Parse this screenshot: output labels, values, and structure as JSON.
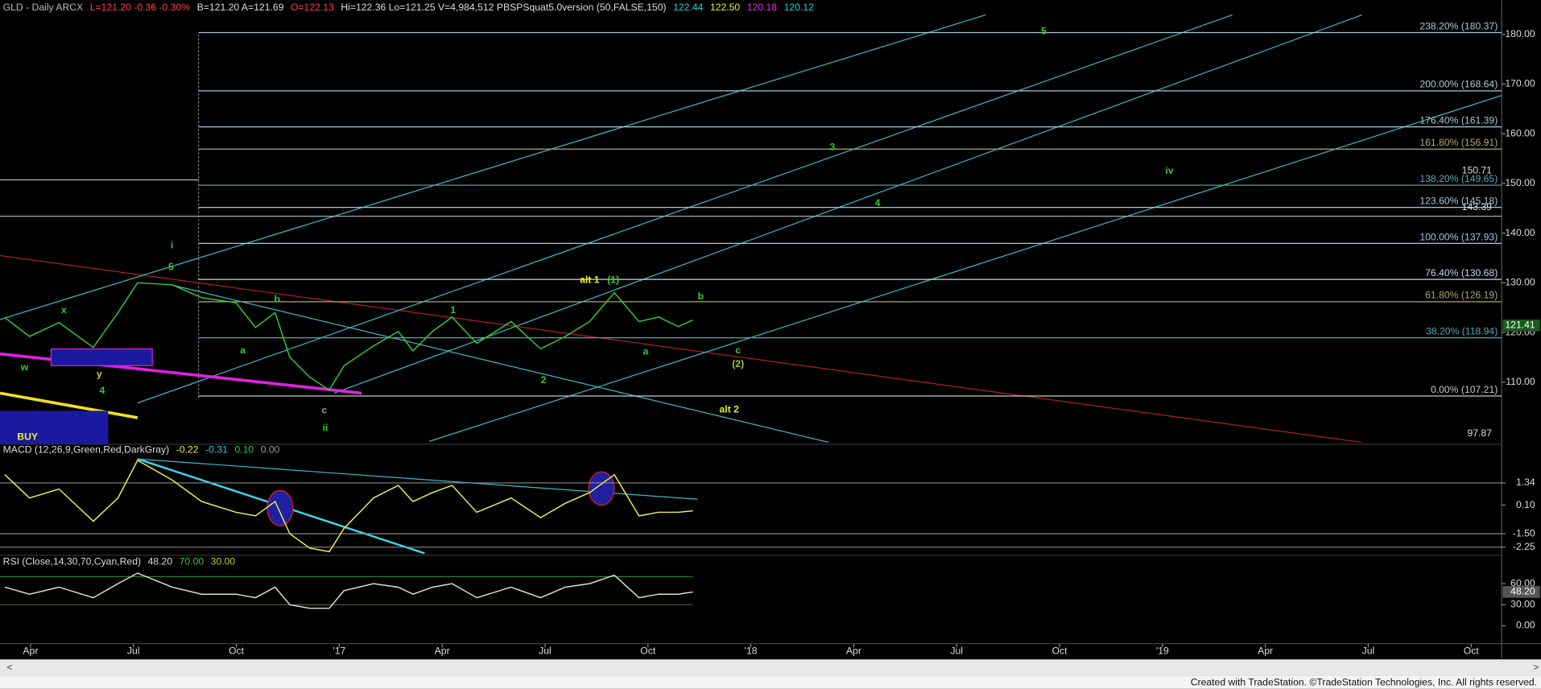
{
  "header": {
    "parts": [
      {
        "text": "GLD - Daily  ARCX",
        "color": "#bbbbbb"
      },
      {
        "text": "L=121.20  -0.36  -0.30%",
        "color": "#ff4040"
      },
      {
        "text": "B=121.20  A=121.69",
        "color": "#dddddd"
      },
      {
        "text": "O=122.13",
        "color": "#ff4040"
      },
      {
        "text": "Hi=122.36  Lo=121.25  V=4,984,512  PBSPSquat5.0version (50,FALSE,150)",
        "color": "#dddddd"
      },
      {
        "text": "122.44",
        "color": "#33cccc"
      },
      {
        "text": "122.50",
        "color": "#eeee33"
      },
      {
        "text": "120.18",
        "color": "#dd33dd"
      },
      {
        "text": "120.12",
        "color": "#33cccc"
      }
    ]
  },
  "chart_data": [
    {
      "type": "line",
      "color": "#33cc33",
      "x": [
        2.25,
        2.97,
        3.83,
        4.83,
        5.55,
        6.12,
        7.13,
        7.99,
        8.99,
        9.56,
        10.13,
        10.56,
        11.14,
        11.71,
        12.14,
        13.0,
        13.72,
        14.15,
        14.72,
        15.29,
        16.01,
        17.01,
        17.87,
        18.59,
        19.3,
        20.02,
        20.74,
        21.31,
        21.88,
        22.31
      ],
      "values": [
        123,
        119.2,
        122,
        117,
        124,
        130,
        129.6,
        127,
        126,
        121,
        124,
        115,
        111,
        108.4,
        113.3,
        117.3,
        120.2,
        116.3,
        120.2,
        123.1,
        117.8,
        122.2,
        116.7,
        119.2,
        122.2,
        128,
        122.2,
        123.1,
        121.2,
        122.5
      ],
      "xlim": [
        2.11,
        45.89
      ],
      "xticks": [
        {
          "value": 3,
          "label": "Apr"
        },
        {
          "value": 6,
          "label": "Jul"
        },
        {
          "value": 9,
          "label": "Oct"
        },
        {
          "value": 12,
          "label": "'17"
        },
        {
          "value": 15,
          "label": "Apr"
        },
        {
          "value": 18,
          "label": "Jul"
        },
        {
          "value": 21,
          "label": "Oct"
        },
        {
          "value": 24,
          "label": "'18"
        },
        {
          "value": 27,
          "label": "Apr"
        },
        {
          "value": 30,
          "label": "Jul"
        },
        {
          "value": 33,
          "label": "Oct"
        },
        {
          "value": 36,
          "label": "'19"
        },
        {
          "value": 39,
          "label": "Apr"
        },
        {
          "value": 42,
          "label": "Jul"
        },
        {
          "value": 45,
          "label": "Oct"
        }
      ],
      "ylim": [
        97.5,
        186.9
      ],
      "yticks": [
        {
          "value": 110,
          "label": "110.00"
        },
        {
          "value": 120,
          "label": "120.00"
        },
        {
          "value": 130,
          "label": "130.00"
        },
        {
          "value": 140,
          "label": "140.00"
        },
        {
          "value": 150,
          "label": "150.00"
        },
        {
          "value": 160,
          "label": "160.00"
        },
        {
          "value": 170,
          "label": "170.00"
        },
        {
          "value": 180,
          "label": "180.00"
        }
      ],
      "levels": [
        {
          "value": 180.37,
          "label": "238.20% (180.37)",
          "color": "#a8c8d8"
        },
        {
          "value": 168.64,
          "label": "200.00% (168.64)",
          "color": "#a8c8d8"
        },
        {
          "value": 161.39,
          "label": "176.40% (161.39)",
          "color": "#a8c8d8"
        },
        {
          "value": 156.91,
          "label": "161.80% (156.91)",
          "color": "#b0a868"
        },
        {
          "value": 149.65,
          "label": "138.20% (149.65)",
          "color": "#5fa8b8"
        },
        {
          "value": 145.18,
          "label": "123.60% (145.18)",
          "color": "#a8c8d8"
        },
        {
          "value": 137.93,
          "label": "100.00% (137.93)",
          "color": "#a8c8d8"
        },
        {
          "value": 130.68,
          "label": "76.40% (130.68)",
          "color": "#c8d8e8"
        },
        {
          "value": 126.19,
          "label": "61.80% (126.19)",
          "color": "#b0a868"
        },
        {
          "value": 118.94,
          "label": "38.20% (118.94)",
          "color": "#4fa8b8"
        },
        {
          "value": 107.21,
          "label": "0.00% (107.21)",
          "color": "#c8c8c8"
        }
      ],
      "markers": [
        150.71,
        143.39,
        97.87
      ],
      "price_tags": [
        121.41
      ],
      "annotations": [
        {
          "text": "i",
          "color": "#33cc33"
        },
        {
          "text": "5",
          "color": "#33cc33"
        },
        {
          "text": "x",
          "color": "#33cc33"
        },
        {
          "text": "w",
          "color": "#33cc33"
        },
        {
          "text": "y",
          "color": "#cccc33"
        },
        {
          "text": "4",
          "color": "#33cc33"
        },
        {
          "text": "a",
          "color": "#33cc33"
        },
        {
          "text": "b",
          "color": "#33cc33"
        },
        {
          "text": "c",
          "color": "#999999"
        },
        {
          "text": "ii",
          "color": "#33cc33"
        },
        {
          "text": "1",
          "color": "#33cc33"
        },
        {
          "text": "2",
          "color": "#33cc33"
        },
        {
          "text": "alt 1",
          "color": "#eeee33"
        },
        {
          "text": "(1)",
          "color": "#33cc33"
        },
        {
          "text": "a",
          "color": "#33cc33"
        },
        {
          "text": "b",
          "color": "#33cc33"
        },
        {
          "text": "c",
          "color": "#33cc33"
        },
        {
          "text": "(2)",
          "color": "#99cc33"
        },
        {
          "text": "alt 2",
          "color": "#eeee33"
        },
        {
          "text": "3",
          "color": "#33cc33"
        },
        {
          "text": "4",
          "color": "#33cc33"
        },
        {
          "text": "5",
          "color": "#33cc33"
        },
        {
          "text": "iv",
          "color": "#33cc33"
        },
        {
          "text": "BUY",
          "color": "#eeee33"
        }
      ]
    },
    {
      "type": "line",
      "color": "#eeee55",
      "title_parts": [
        {
          "text": "MACD (12,26,9,Green,Red,DarkGray)",
          "color": "#dddddd"
        },
        {
          "text": "-0.22",
          "color": "#eeee33"
        },
        {
          "text": "-0.31",
          "color": "#33cccc"
        },
        {
          "text": "0.10",
          "color": "#33cc33"
        },
        {
          "text": "0.00",
          "color": "#999999"
        }
      ],
      "x": [
        2.25,
        2.97,
        3.83,
        4.83,
        5.55,
        6.12,
        7.13,
        7.99,
        8.99,
        9.56,
        10.13,
        10.56,
        11.14,
        11.71,
        12.14,
        13.0,
        13.72,
        14.15,
        14.72,
        15.29,
        16.01,
        17.01,
        17.87,
        18.59,
        19.3,
        20.02,
        20.74,
        21.31,
        21.88,
        22.31
      ],
      "values": [
        1.8,
        0.5,
        1.0,
        -0.8,
        0.5,
        2.6,
        1.5,
        0.3,
        -0.3,
        -0.5,
        0.3,
        -1.5,
        -2.3,
        -2.5,
        -1.2,
        0.5,
        1.2,
        0.3,
        0.8,
        1.2,
        -0.3,
        0.5,
        -0.6,
        0.2,
        0.8,
        1.8,
        -0.5,
        -0.3,
        -0.3,
        -0.22
      ],
      "xlim": [
        2.11,
        45.89
      ],
      "ylim": [
        -2.7,
        3.5
      ],
      "yticks": [
        1.34,
        {
          "value": 0.1,
          "label": "0.10"
        },
        {
          "value": -1.5,
          "label": "-1.50"
        },
        -2.25
      ]
    },
    {
      "type": "line",
      "color": "#dddddd",
      "title_parts": [
        {
          "text": "RSI (Close,14,30,70,Cyan,Red)",
          "color": "#dddddd"
        },
        {
          "text": "48.20",
          "color": "#dddddd"
        },
        {
          "text": "70.00",
          "color": "#33cc33"
        },
        {
          "text": "30.00",
          "color": "#cccc33"
        }
      ],
      "x": [
        2.25,
        2.97,
        3.83,
        4.83,
        5.55,
        6.12,
        7.13,
        7.99,
        8.99,
        9.56,
        10.13,
        10.56,
        11.14,
        11.71,
        12.14,
        13.0,
        13.72,
        14.15,
        14.72,
        15.29,
        16.01,
        17.01,
        17.87,
        18.59,
        19.3,
        20.02,
        20.74,
        21.31,
        21.88,
        22.31
      ],
      "values": [
        55,
        45,
        55,
        40,
        60,
        75,
        55,
        45,
        45,
        40,
        55,
        30,
        25,
        25,
        50,
        60,
        55,
        45,
        55,
        60,
        40,
        55,
        40,
        55,
        60,
        72,
        40,
        45,
        45,
        48.2
      ],
      "xlim": [
        2.11,
        45.89
      ],
      "ylim": [
        -31,
        99
      ],
      "yticks": [
        {
          "value": 60,
          "label": "60.00"
        },
        {
          "value": 30,
          "label": "30.00"
        },
        {
          "value": 0,
          "label": "0.00"
        }
      ],
      "price_tags": [
        {
          "value": 48.2,
          "label": "48.20"
        }
      ]
    }
  ],
  "footer": "Created with TradeStation. ©TradeStation Technologies, Inc. All rights reserved."
}
